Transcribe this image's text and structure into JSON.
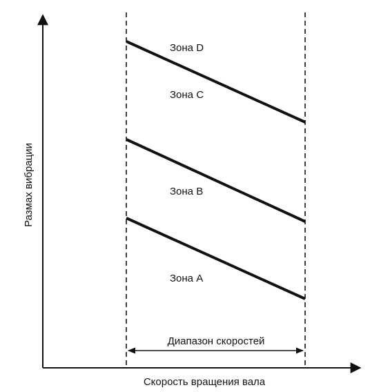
{
  "axes": {
    "x_label": "Скорость вращения вала",
    "y_label": "Размах вибрации"
  },
  "speed_range": {
    "label": "Диапазон скоростей"
  },
  "zones": [
    {
      "id": "D",
      "label": "Зона D"
    },
    {
      "id": "C",
      "label": "Зона C"
    },
    {
      "id": "B",
      "label": "Зона B"
    },
    {
      "id": "A",
      "label": "Зона A"
    }
  ],
  "colors": {
    "ink": "#111111",
    "background": "#ffffff"
  }
}
